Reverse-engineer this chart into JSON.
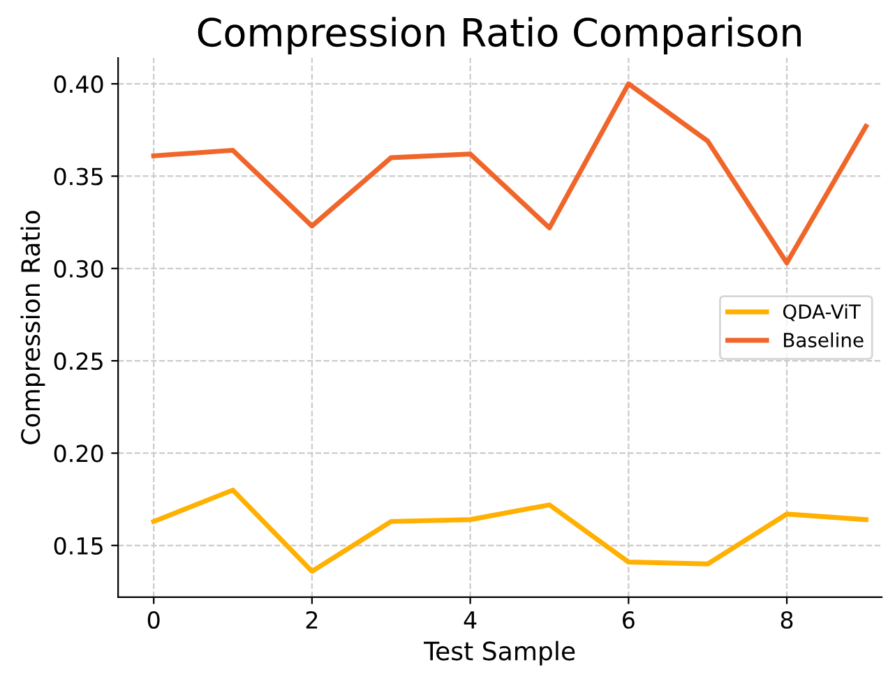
{
  "chart_data": {
    "type": "line",
    "title": "Compression Ratio Comparison",
    "xlabel": "Test Sample",
    "ylabel": "Compression Ratio",
    "x": [
      0,
      1,
      2,
      3,
      4,
      5,
      6,
      7,
      8,
      9
    ],
    "series": [
      {
        "name": "QDA-ViT",
        "color": "#ffb000",
        "values": [
          0.163,
          0.18,
          0.136,
          0.163,
          0.164,
          0.172,
          0.141,
          0.14,
          0.167,
          0.164
        ]
      },
      {
        "name": "Baseline",
        "color": "#f0662a",
        "values": [
          0.361,
          0.364,
          0.323,
          0.36,
          0.362,
          0.322,
          0.4,
          0.369,
          0.303,
          0.377
        ]
      }
    ],
    "xlim": [
      -0.45,
      9.2
    ],
    "ylim": [
      0.122,
      0.414
    ],
    "xticks": [
      0,
      2,
      4,
      6,
      8
    ],
    "yticks": [
      {
        "value": 0.15,
        "label": "0.15"
      },
      {
        "value": 0.2,
        "label": "0.20"
      },
      {
        "value": 0.25,
        "label": "0.25"
      },
      {
        "value": 0.3,
        "label": "0.30"
      },
      {
        "value": 0.35,
        "label": "0.35"
      },
      {
        "value": 0.4,
        "label": "0.40"
      }
    ],
    "grid": true,
    "legend": "center right",
    "line_style": "solid",
    "marker": "none"
  }
}
